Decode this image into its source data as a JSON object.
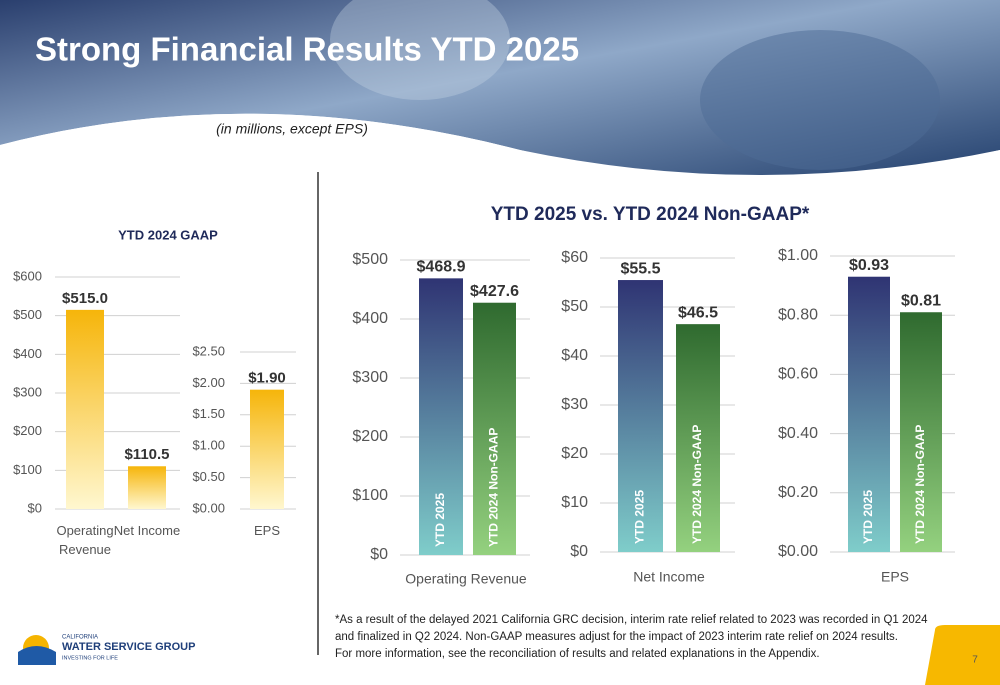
{
  "header": {
    "title": "Strong Financial Results YTD 2025",
    "subtitle": "(in millions, except EPS)"
  },
  "section_title": "YTD 2025 vs. YTD 2024 Non-GAAP*",
  "chart_data": [
    {
      "type": "bar",
      "title": "YTD 2024 GAAP",
      "categories": [
        "Operating Revenue",
        "Net Income"
      ],
      "values": [
        515.0,
        110.5
      ],
      "value_labels": [
        "$515.0",
        "$110.5"
      ],
      "ylim": [
        0,
        600
      ],
      "yticks": [
        {
          "value": 0,
          "label": "$0"
        },
        {
          "value": 100,
          "label": "$100"
        },
        {
          "value": 200,
          "label": "$200"
        },
        {
          "value": 300,
          "label": "$300"
        },
        {
          "value": 400,
          "label": "$400"
        },
        {
          "value": 500,
          "label": "$500"
        },
        {
          "value": 600,
          "label": "$600"
        }
      ],
      "grid": true,
      "bar_gradients": [
        [
          "#f6b50a",
          "#fff7cf"
        ],
        [
          "#f6b50a",
          "#fff7cf"
        ]
      ]
    },
    {
      "type": "bar",
      "categories": [
        "EPS"
      ],
      "values": [
        1.9
      ],
      "value_labels": [
        "$1.90"
      ],
      "ylim": [
        0,
        2.5
      ],
      "yticks": [
        {
          "value": 0,
          "label": "$0.00"
        },
        {
          "value": 0.5,
          "label": "$0.50"
        },
        {
          "value": 1.0,
          "label": "$1.00"
        },
        {
          "value": 1.5,
          "label": "$1.50"
        },
        {
          "value": 2.0,
          "label": "$2.00"
        },
        {
          "value": 2.5,
          "label": "$2.50"
        }
      ],
      "grid": true,
      "bar_gradients": [
        [
          "#f6b50a",
          "#fff7cf"
        ]
      ]
    },
    {
      "type": "bar",
      "xlabel": "Operating Revenue",
      "categories": [
        "YTD 2025",
        "YTD 2024 Non-GAAP"
      ],
      "values": [
        468.9,
        427.6
      ],
      "value_labels": [
        "$468.9",
        "$427.6"
      ],
      "ylim": [
        0,
        500
      ],
      "yticks": [
        {
          "value": 0,
          "label": "$0"
        },
        {
          "value": 100,
          "label": "$100"
        },
        {
          "value": 200,
          "label": "$200"
        },
        {
          "value": 300,
          "label": "$300"
        },
        {
          "value": 400,
          "label": "$400"
        },
        {
          "value": 500,
          "label": "$500"
        }
      ],
      "grid": true,
      "bar_gradients": [
        [
          "#2f3473",
          "#7fcdca"
        ],
        [
          "#2f6a2f",
          "#94d17f"
        ]
      ]
    },
    {
      "type": "bar",
      "xlabel": "Net Income",
      "categories": [
        "YTD 2025",
        "YTD 2024 Non-GAAP"
      ],
      "values": [
        55.5,
        46.5
      ],
      "value_labels": [
        "$55.5",
        "$46.5"
      ],
      "ylim": [
        0,
        60
      ],
      "yticks": [
        {
          "value": 0,
          "label": "$0"
        },
        {
          "value": 10,
          "label": "$10"
        },
        {
          "value": 20,
          "label": "$20"
        },
        {
          "value": 30,
          "label": "$30"
        },
        {
          "value": 40,
          "label": "$40"
        },
        {
          "value": 50,
          "label": "$50"
        },
        {
          "value": 60,
          "label": "$60"
        }
      ],
      "grid": true,
      "bar_gradients": [
        [
          "#2f3473",
          "#7fcdca"
        ],
        [
          "#2f6a2f",
          "#94d17f"
        ]
      ]
    },
    {
      "type": "bar",
      "xlabel": "EPS",
      "categories": [
        "YTD 2025",
        "YTD 2024 Non-GAAP"
      ],
      "values": [
        0.93,
        0.81
      ],
      "value_labels": [
        "$0.93",
        "$0.81"
      ],
      "ylim": [
        0,
        1.0
      ],
      "yticks": [
        {
          "value": 0,
          "label": "$0.00"
        },
        {
          "value": 0.2,
          "label": "$0.20"
        },
        {
          "value": 0.4,
          "label": "$0.40"
        },
        {
          "value": 0.6,
          "label": "$0.60"
        },
        {
          "value": 0.8,
          "label": "$0.80"
        },
        {
          "value": 1.0,
          "label": "$1.00"
        }
      ],
      "grid": true,
      "bar_gradients": [
        [
          "#2f3473",
          "#7fcdca"
        ],
        [
          "#2f6a2f",
          "#94d17f"
        ]
      ]
    }
  ],
  "footnote": [
    "*As a result of the delayed 2021 California GRC decision, interim rate relief related to 2023 was recorded in Q1 2024",
    "and finalized in Q2 2024. Non-GAAP measures adjust for the impact of 2023 interim rate relief on 2024 results.",
    "For more information, see the reconciliation of results and related explanations in the Appendix."
  ],
  "logo": {
    "top": "CALIFORNIA",
    "name": "WATER SERVICE GROUP",
    "tagline": "INVESTING FOR LIFE"
  },
  "page_number": "7"
}
